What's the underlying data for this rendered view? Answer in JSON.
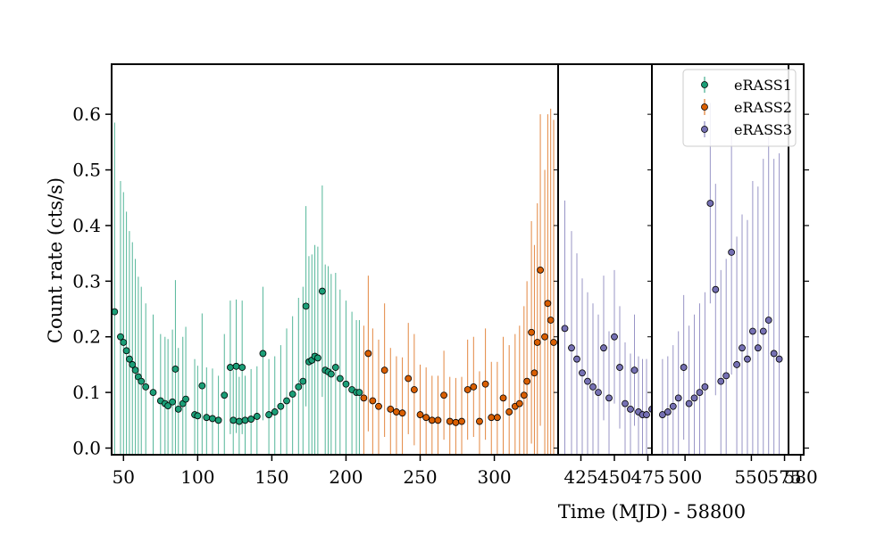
{
  "chart_data": {
    "type": "scatter",
    "xlabel": "Time (MJD) - 58800",
    "ylabel": "Count rate (cts/s)",
    "ylim": [
      -0.012,
      0.69
    ],
    "yticks": [
      "0.0",
      "0.1",
      "0.2",
      "0.3",
      "0.4",
      "0.5",
      "0.6"
    ],
    "legend_position": "top-right",
    "panels": [
      {
        "xlim": [
          42,
          343
        ],
        "xticks": [
          "50",
          "100",
          "150",
          "200",
          "250",
          "300"
        ]
      },
      {
        "xlim": [
          408,
          478
        ],
        "xticks": [
          "425",
          "450",
          "475"
        ]
      },
      {
        "xlim": [
          475,
          578
        ],
        "xticks": [
          "500",
          "550",
          "575"
        ]
      },
      {
        "xlim": [
          572,
          582
        ],
        "xticks": [
          "580"
        ]
      }
    ],
    "series": [
      {
        "name": "eRASS1",
        "color": "#1b9e77",
        "x": [
          44,
          48,
          50,
          52,
          54,
          56,
          58,
          60,
          62,
          65,
          70,
          75,
          78,
          80,
          83,
          85,
          87,
          90,
          92,
          98,
          100,
          103,
          106,
          110,
          114,
          118,
          122,
          124,
          126,
          128,
          130,
          132,
          136,
          140,
          144,
          148,
          152,
          156,
          160,
          164,
          168,
          171,
          173,
          175,
          177,
          179,
          181,
          184,
          186,
          188,
          190,
          193,
          196,
          200,
          204,
          207,
          209
        ],
        "y": [
          0.245,
          0.2,
          0.19,
          0.175,
          0.16,
          0.15,
          0.14,
          0.128,
          0.12,
          0.11,
          0.1,
          0.085,
          0.08,
          0.076,
          0.083,
          0.142,
          0.07,
          0.08,
          0.088,
          0.06,
          0.058,
          0.112,
          0.055,
          0.053,
          0.05,
          0.095,
          0.145,
          0.05,
          0.147,
          0.048,
          0.145,
          0.05,
          0.052,
          0.057,
          0.17,
          0.06,
          0.065,
          0.075,
          0.085,
          0.097,
          0.11,
          0.12,
          0.255,
          0.155,
          0.158,
          0.165,
          0.162,
          0.282,
          0.14,
          0.137,
          0.133,
          0.145,
          0.125,
          0.115,
          0.105,
          0.1,
          0.1
        ],
        "yerr": [
          0.34,
          0.28,
          0.27,
          0.25,
          0.23,
          0.22,
          0.2,
          0.18,
          0.17,
          0.15,
          0.14,
          0.12,
          0.12,
          0.12,
          0.13,
          0.16,
          0.11,
          0.12,
          0.13,
          0.1,
          0.09,
          0.13,
          0.09,
          0.09,
          0.08,
          0.11,
          0.12,
          0.09,
          0.12,
          0.08,
          0.12,
          0.08,
          0.09,
          0.09,
          0.12,
          0.1,
          0.1,
          0.11,
          0.13,
          0.14,
          0.16,
          0.17,
          0.18,
          0.19,
          0.19,
          0.2,
          0.2,
          0.19,
          0.19,
          0.19,
          0.18,
          0.17,
          0.16,
          0.15,
          0.14,
          0.13,
          0.13
        ]
      },
      {
        "name": "eRASS2",
        "color": "#d95f02",
        "x": [
          212,
          215,
          218,
          222,
          226,
          230,
          234,
          238,
          242,
          246,
          250,
          254,
          258,
          262,
          266,
          270,
          274,
          278,
          282,
          286,
          290,
          294,
          298,
          302,
          306,
          310,
          314,
          317,
          320,
          322,
          325,
          327,
          329,
          331,
          334,
          336,
          338,
          340
        ],
        "y": [
          0.09,
          0.17,
          0.085,
          0.075,
          0.14,
          0.07,
          0.065,
          0.063,
          0.125,
          0.105,
          0.06,
          0.055,
          0.05,
          0.05,
          0.095,
          0.048,
          0.046,
          0.048,
          0.105,
          0.11,
          0.048,
          0.115,
          0.055,
          0.055,
          0.09,
          0.065,
          0.075,
          0.08,
          0.095,
          0.12,
          0.208,
          0.135,
          0.19,
          0.32,
          0.2,
          0.26,
          0.23,
          0.19
        ],
        "yerr": [
          0.13,
          0.14,
          0.13,
          0.12,
          0.12,
          0.11,
          0.1,
          0.1,
          0.1,
          0.1,
          0.09,
          0.09,
          0.08,
          0.08,
          0.08,
          0.08,
          0.08,
          0.08,
          0.09,
          0.09,
          0.09,
          0.1,
          0.1,
          0.1,
          0.11,
          0.12,
          0.13,
          0.14,
          0.16,
          0.18,
          0.2,
          0.23,
          0.25,
          0.28,
          0.3,
          0.34,
          0.38,
          0.4
        ]
      },
      {
        "name": "eRASS3",
        "color": "#7570b3",
        "x": [
          413,
          418,
          422,
          426,
          430,
          434,
          438,
          442,
          446,
          450,
          454,
          458,
          462,
          465,
          468,
          471,
          474,
          478,
          483,
          487,
          491,
          495,
          499,
          503,
          507,
          511,
          515,
          519,
          523,
          527,
          531,
          535,
          539,
          543,
          547,
          551,
          555,
          559,
          563,
          567,
          571
        ],
        "y": [
          0.215,
          0.18,
          0.16,
          0.135,
          0.12,
          0.11,
          0.1,
          0.18,
          0.09,
          0.2,
          0.145,
          0.08,
          0.07,
          0.14,
          0.065,
          0.06,
          0.06,
          0.07,
          0.06,
          0.065,
          0.075,
          0.09,
          0.145,
          0.08,
          0.09,
          0.1,
          0.11,
          0.44,
          0.285,
          0.12,
          0.13,
          0.352,
          0.15,
          0.18,
          0.16,
          0.21,
          0.18,
          0.21,
          0.23,
          0.17,
          0.16
        ],
        "yerr": [
          0.23,
          0.21,
          0.19,
          0.17,
          0.16,
          0.15,
          0.14,
          0.13,
          0.12,
          0.12,
          0.11,
          0.11,
          0.1,
          0.1,
          0.1,
          0.1,
          0.1,
          0.1,
          0.1,
          0.1,
          0.11,
          0.12,
          0.13,
          0.14,
          0.15,
          0.16,
          0.17,
          0.18,
          0.19,
          0.2,
          0.21,
          0.22,
          0.23,
          0.24,
          0.25,
          0.27,
          0.29,
          0.31,
          0.33,
          0.35,
          0.37
        ]
      }
    ]
  }
}
